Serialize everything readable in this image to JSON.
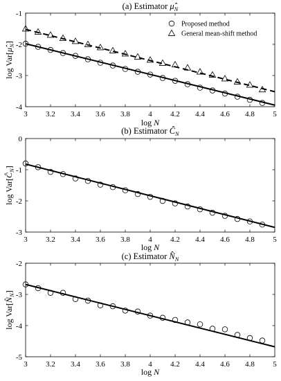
{
  "chart_data": [
    {
      "type": "scatter",
      "title": "(a) Estimator μ̂_N",
      "title_parts": {
        "prefix": "(a) Estimator ",
        "symbol": "μ̂",
        "sub": "N"
      },
      "xlabel": "log N",
      "ylabel": "log Var[μ̂_N]",
      "ylabel_parts": {
        "prefix": "log Var[",
        "symbol": "μ̂",
        "sub": "N",
        "suffix": "]"
      },
      "xlim": [
        3,
        5
      ],
      "ylim": [
        -4,
        -1
      ],
      "xticks": [
        "3",
        "3.2",
        "3.4",
        "3.6",
        "3.8",
        "4",
        "4.2",
        "4.4",
        "4.6",
        "4.8",
        "5"
      ],
      "yticks": [
        "-4",
        "-3",
        "-2",
        "-1"
      ],
      "grid": false,
      "legend_position": "top-right",
      "series": [
        {
          "name": "Proposed method",
          "marker": "circle",
          "x": [
            3.0,
            3.1,
            3.2,
            3.3,
            3.4,
            3.5,
            3.6,
            3.7,
            3.8,
            3.9,
            4.0,
            4.1,
            4.2,
            4.3,
            4.4,
            4.5,
            4.6,
            4.7,
            4.8,
            4.9
          ],
          "y": [
            -1.98,
            -2.08,
            -2.18,
            -2.28,
            -2.37,
            -2.48,
            -2.59,
            -2.68,
            -2.79,
            -2.88,
            -2.97,
            -3.08,
            -3.17,
            -3.28,
            -3.39,
            -3.48,
            -3.58,
            -3.68,
            -3.78,
            -3.88
          ],
          "fit": {
            "style": "solid",
            "x": [
              3.0,
              5.0
            ],
            "y": [
              -1.98,
              -3.95
            ]
          }
        },
        {
          "name": "General mean-shift method",
          "marker": "triangle",
          "x": [
            3.0,
            3.1,
            3.2,
            3.3,
            3.4,
            3.5,
            3.6,
            3.7,
            3.8,
            3.9,
            4.0,
            4.1,
            4.2,
            4.3,
            4.4,
            4.5,
            4.6,
            4.7,
            4.8,
            4.9
          ],
          "y": [
            -1.5,
            -1.6,
            -1.7,
            -1.8,
            -1.9,
            -2.0,
            -2.1,
            -2.2,
            -2.3,
            -2.4,
            -2.5,
            -2.6,
            -2.65,
            -2.75,
            -2.88,
            -2.98,
            -3.1,
            -3.2,
            -3.3,
            -3.45
          ],
          "fit": {
            "style": "dashed",
            "x": [
              3.0,
              5.0
            ],
            "y": [
              -1.52,
              -3.52
            ]
          }
        }
      ]
    },
    {
      "type": "scatter",
      "title": "(b) Estimator Ĉ_N",
      "title_parts": {
        "prefix": "(b) Estimator ",
        "symbol": "Ĉ",
        "sub": "N"
      },
      "xlabel": "log N",
      "ylabel": "log Var[Ĉ_N]",
      "ylabel_parts": {
        "prefix": "log Var[",
        "symbol": "Ĉ",
        "sub": "N",
        "suffix": "]"
      },
      "xlim": [
        3,
        5
      ],
      "ylim": [
        -3,
        0
      ],
      "xticks": [
        "3",
        "3.2",
        "3.4",
        "3.6",
        "3.8",
        "4",
        "4.2",
        "4.4",
        "4.6",
        "4.8",
        "5"
      ],
      "yticks": [
        "-3",
        "-2",
        "-1",
        "0"
      ],
      "grid": false,
      "series": [
        {
          "marker": "circle",
          "x": [
            3.0,
            3.1,
            3.2,
            3.3,
            3.4,
            3.5,
            3.6,
            3.7,
            3.8,
            3.9,
            4.0,
            4.1,
            4.2,
            4.3,
            4.4,
            4.5,
            4.6,
            4.7,
            4.8,
            4.9
          ],
          "y": [
            -0.8,
            -0.92,
            -1.07,
            -1.14,
            -1.28,
            -1.36,
            -1.48,
            -1.56,
            -1.66,
            -1.78,
            -1.87,
            -2.0,
            -2.08,
            -2.18,
            -2.27,
            -2.38,
            -2.48,
            -2.58,
            -2.66,
            -2.76
          ],
          "fit": {
            "style": "solid",
            "x": [
              3.0,
              5.0
            ],
            "y": [
              -0.82,
              -2.85
            ]
          }
        }
      ]
    },
    {
      "type": "scatter",
      "title": "(c) Estimator N̂_N",
      "title_parts": {
        "prefix": "(c) Estimator ",
        "symbol": "N̂",
        "sub": "N"
      },
      "xlabel": "log N",
      "ylabel": "log Var[N̂_N]",
      "ylabel_parts": {
        "prefix": "log Var[",
        "symbol": "N̂",
        "sub": "N",
        "suffix": "]"
      },
      "xlim": [
        3,
        5
      ],
      "ylim": [
        -5,
        -2
      ],
      "xticks": [
        "3",
        "3.2",
        "3.4",
        "3.6",
        "3.8",
        "4",
        "4.2",
        "4.4",
        "4.6",
        "4.8",
        "5"
      ],
      "yticks": [
        "-5",
        "-4",
        "-3",
        "-2"
      ],
      "grid": false,
      "series": [
        {
          "marker": "circle",
          "x": [
            3.0,
            3.1,
            3.2,
            3.3,
            3.4,
            3.5,
            3.6,
            3.7,
            3.8,
            3.9,
            4.0,
            4.1,
            4.2,
            4.3,
            4.4,
            4.5,
            4.6,
            4.7,
            4.8,
            4.9
          ],
          "y": [
            -2.68,
            -2.8,
            -2.95,
            -2.95,
            -3.15,
            -3.2,
            -3.35,
            -3.38,
            -3.52,
            -3.55,
            -3.68,
            -3.75,
            -3.82,
            -3.9,
            -3.96,
            -4.1,
            -4.12,
            -4.3,
            -4.4,
            -4.48
          ],
          "fit": {
            "style": "solid",
            "x": [
              3.0,
              5.0
            ],
            "y": [
              -2.68,
              -4.68
            ]
          }
        }
      ]
    }
  ]
}
